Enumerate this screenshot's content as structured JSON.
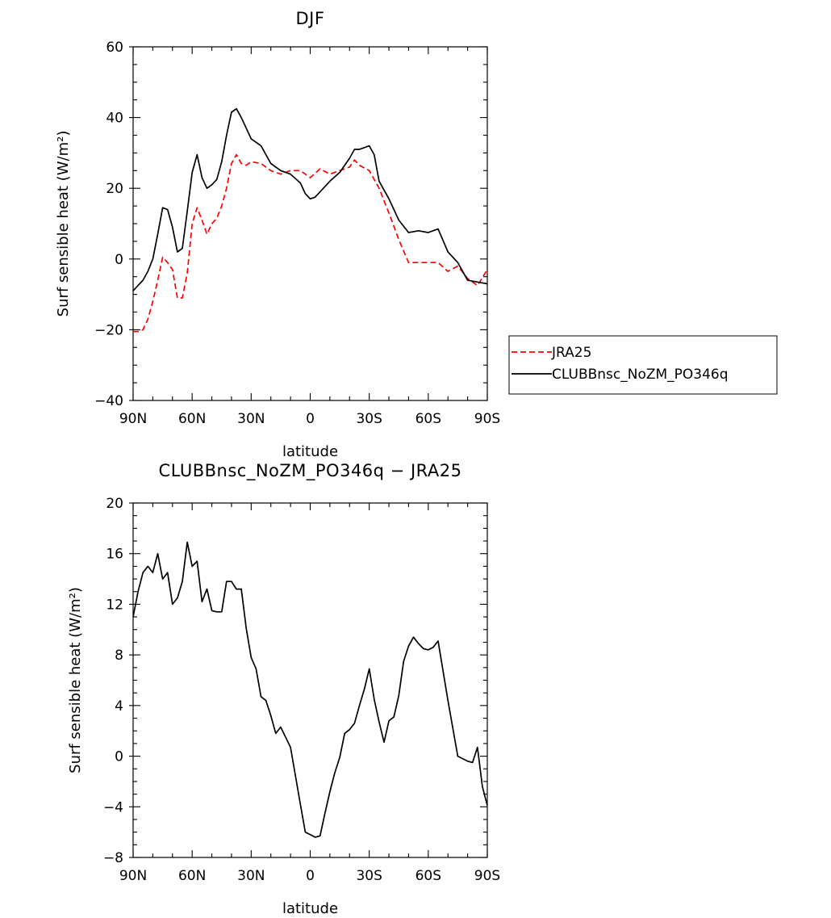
{
  "chart_data": [
    {
      "type": "line",
      "title": "DJF",
      "xlabel": "latitude",
      "ylabel": "Surf sensible heat (W/m²)",
      "xlim": [
        90,
        -90
      ],
      "ylim": [
        -40,
        60
      ],
      "x_ticks": [
        90,
        60,
        30,
        0,
        -30,
        -60,
        -90
      ],
      "x_tick_labels": [
        "90N",
        "60N",
        "30N",
        "0",
        "30S",
        "60S",
        "90S"
      ],
      "y_ticks": [
        -40,
        -20,
        0,
        20,
        40,
        60
      ],
      "y_tick_labels": [
        "−40",
        "−20",
        "0",
        "20",
        "40",
        "60"
      ],
      "legend_position": "right",
      "series": [
        {
          "name": "JRA25",
          "color": "#ff0000",
          "style": "dashed",
          "x": [
            90,
            87.5,
            85,
            82.5,
            80,
            77.5,
            75,
            72.5,
            70,
            67.5,
            65,
            62.5,
            60,
            57.5,
            55,
            52.5,
            50,
            47.5,
            45,
            42.5,
            40,
            37.5,
            35,
            32.5,
            30,
            25,
            20,
            15,
            10,
            5,
            0,
            -5,
            -10,
            -15,
            -20,
            -22.5,
            -25,
            -30,
            -35,
            -40,
            -45,
            -50,
            -55,
            -60,
            -65,
            -70,
            -75,
            -80,
            -85,
            -90
          ],
          "y": [
            -20.5,
            -20.5,
            -20,
            -17,
            -12,
            -6,
            0.5,
            -1,
            -3,
            -11,
            -11,
            -4,
            10,
            14.5,
            11,
            7,
            10,
            11.5,
            15,
            20,
            27,
            29.5,
            27,
            26.5,
            27.5,
            27,
            25,
            24,
            25,
            25,
            23,
            25.5,
            24,
            25,
            26,
            28,
            26.5,
            25,
            20,
            13,
            5.5,
            -1,
            -1,
            -1,
            -1,
            -3.5,
            -2,
            -5.5,
            -7.5,
            -3
          ]
        },
        {
          "name": "CLUBBnsc_NoZM_PO346q",
          "color": "#000000",
          "style": "solid",
          "x": [
            90,
            87.5,
            85,
            82.5,
            80,
            77.5,
            75,
            72.5,
            70,
            67.5,
            65,
            62.5,
            60,
            57.5,
            55,
            52.5,
            50,
            47.5,
            45,
            42.5,
            40,
            37.5,
            35,
            32.5,
            30,
            25,
            20,
            15,
            10,
            5,
            2.5,
            0,
            -2.5,
            -5,
            -10,
            -15,
            -20,
            -22.5,
            -25,
            -27.5,
            -30,
            -32.5,
            -35,
            -40,
            -45,
            -50,
            -55,
            -60,
            -65,
            -70,
            -75,
            -80,
            -85,
            -90
          ],
          "y": [
            -9,
            -7.5,
            -6,
            -3.5,
            0,
            7,
            14.5,
            14,
            9,
            2,
            3,
            13.5,
            24.5,
            29.5,
            23,
            20,
            21,
            22.5,
            27.5,
            35,
            41.5,
            42.5,
            40,
            37,
            34,
            32,
            27,
            25,
            24,
            21.5,
            18.5,
            17,
            17.5,
            19,
            22,
            24.5,
            28.5,
            31,
            31,
            31.5,
            32,
            29.5,
            22,
            17,
            11,
            7.5,
            8,
            7.5,
            8.5,
            2,
            -1,
            -6,
            -6.5,
            -7
          ]
        }
      ]
    },
    {
      "type": "line",
      "title": "CLUBBnsc_NoZM_PO346q − JRA25",
      "xlabel": "latitude",
      "ylabel": "Surf sensible heat (W/m²)",
      "xlim": [
        90,
        -90
      ],
      "ylim": [
        -8,
        20
      ],
      "x_ticks": [
        90,
        60,
        30,
        0,
        -30,
        -60,
        -90
      ],
      "x_tick_labels": [
        "90N",
        "60N",
        "30N",
        "0",
        "30S",
        "60S",
        "90S"
      ],
      "y_ticks": [
        -8,
        -4,
        0,
        4,
        8,
        12,
        16,
        20
      ],
      "y_tick_labels": [
        "−8",
        "−4",
        "0",
        "4",
        "8",
        "12",
        "16",
        "20"
      ],
      "series": [
        {
          "color": "#000000",
          "style": "solid",
          "x": [
            90,
            87.5,
            85,
            82.5,
            80,
            77.5,
            75,
            72.5,
            70,
            67.5,
            65,
            62.5,
            60,
            57.5,
            55,
            52.5,
            50,
            47.5,
            45,
            42.5,
            40,
            37.5,
            35,
            32.5,
            30,
            27.5,
            25,
            22.5,
            20,
            17.5,
            15,
            10,
            5,
            2.5,
            0,
            -2.5,
            -5,
            -7.5,
            -10,
            -12.5,
            -15,
            -17.5,
            -20,
            -22.5,
            -25,
            -27.5,
            -30,
            -32.5,
            -35,
            -37.5,
            -40,
            -42.5,
            -45,
            -47.5,
            -50,
            -52.5,
            -55,
            -57.5,
            -60,
            -62.5,
            -65,
            -70,
            -75,
            -80,
            -82.5,
            -85,
            -87.5,
            -90
          ],
          "y": [
            11,
            13,
            14.5,
            15,
            14.5,
            16,
            14,
            14.5,
            12,
            12.5,
            13.8,
            16.9,
            15,
            15.4,
            12.2,
            13.2,
            11.5,
            11.4,
            11.4,
            13.8,
            13.8,
            13.2,
            13.2,
            10.1,
            7.8,
            6.9,
            4.7,
            4.4,
            3.2,
            1.8,
            2.3,
            0.7,
            -3.8,
            -6,
            -6.2,
            -6.4,
            -6.3,
            -4.5,
            -2.8,
            -1.3,
            -0.1,
            1.8,
            2.1,
            2.6,
            4,
            5.3,
            6.9,
            4.5,
            2.7,
            1.1,
            2.8,
            3.1,
            4.8,
            7.5,
            8.7,
            9.4,
            8.9,
            8.5,
            8.4,
            8.6,
            9.1,
            4.4,
            0,
            -0.4,
            -0.5,
            0.7,
            -2.4,
            -3.9
          ]
        }
      ]
    }
  ]
}
